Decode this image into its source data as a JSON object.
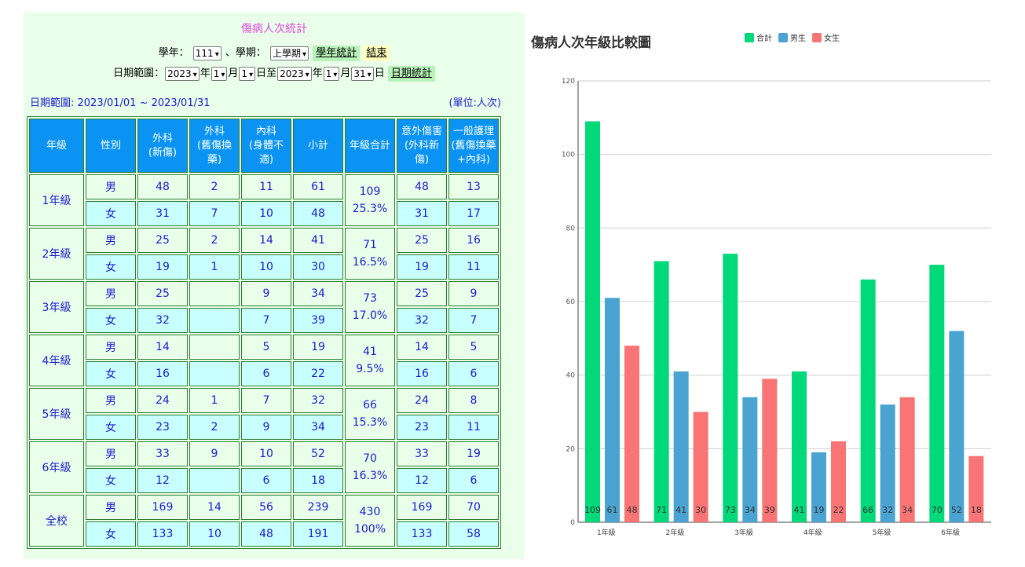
{
  "left": {
    "title": "傷病人次統計",
    "row1": {
      "year_label": "學年：",
      "year_value": "111",
      "term_label": "、學期：",
      "term_value": "上學期",
      "stat_button": "學年統計",
      "end_button": "結束"
    },
    "row2": {
      "range_label": "日期範圍：",
      "y1": "2023",
      "y_unit1": "年",
      "m1": "1",
      "m_unit1": "月",
      "d1": "1",
      "d_unit1": "日至",
      "y2": "2023",
      "y_unit2": "年",
      "m2": "1",
      "m_unit2": "月",
      "d2": "31",
      "d_unit2": "日",
      "day_button": "日期統計"
    },
    "range_text": "日期範圍: 2023/01/01 ~ 2023/01/31",
    "unit_text": "(單位:人次)",
    "headers": [
      "年級",
      "性別",
      "外科\n(新傷)",
      "外科\n(舊傷換藥)",
      "內科\n(身體不適)",
      "小計",
      "年級合計",
      "意外傷害\n(外科新傷)",
      "一般護理\n(舊傷換藥\n+內科)"
    ],
    "groups": [
      {
        "grade": "1年級",
        "total": "109",
        "pct": "25.3%",
        "rows": [
          {
            "sex": "男",
            "a": "48",
            "b": "2",
            "c": "11",
            "sub": "61",
            "acc": "48",
            "care": "13"
          },
          {
            "sex": "女",
            "a": "31",
            "b": "7",
            "c": "10",
            "sub": "48",
            "acc": "31",
            "care": "17"
          }
        ]
      },
      {
        "grade": "2年級",
        "total": "71",
        "pct": "16.5%",
        "rows": [
          {
            "sex": "男",
            "a": "25",
            "b": "2",
            "c": "14",
            "sub": "41",
            "acc": "25",
            "care": "16"
          },
          {
            "sex": "女",
            "a": "19",
            "b": "1",
            "c": "10",
            "sub": "30",
            "acc": "19",
            "care": "11"
          }
        ]
      },
      {
        "grade": "3年級",
        "total": "73",
        "pct": "17.0%",
        "rows": [
          {
            "sex": "男",
            "a": "25",
            "b": "",
            "c": "9",
            "sub": "34",
            "acc": "25",
            "care": "9"
          },
          {
            "sex": "女",
            "a": "32",
            "b": "",
            "c": "7",
            "sub": "39",
            "acc": "32",
            "care": "7"
          }
        ]
      },
      {
        "grade": "4年級",
        "total": "41",
        "pct": "9.5%",
        "rows": [
          {
            "sex": "男",
            "a": "14",
            "b": "",
            "c": "5",
            "sub": "19",
            "acc": "14",
            "care": "5"
          },
          {
            "sex": "女",
            "a": "16",
            "b": "",
            "c": "6",
            "sub": "22",
            "acc": "16",
            "care": "6"
          }
        ]
      },
      {
        "grade": "5年級",
        "total": "66",
        "pct": "15.3%",
        "rows": [
          {
            "sex": "男",
            "a": "24",
            "b": "1",
            "c": "7",
            "sub": "32",
            "acc": "24",
            "care": "8"
          },
          {
            "sex": "女",
            "a": "23",
            "b": "2",
            "c": "9",
            "sub": "34",
            "acc": "23",
            "care": "11"
          }
        ]
      },
      {
        "grade": "6年級",
        "total": "70",
        "pct": "16.3%",
        "rows": [
          {
            "sex": "男",
            "a": "33",
            "b": "9",
            "c": "10",
            "sub": "52",
            "acc": "33",
            "care": "19"
          },
          {
            "sex": "女",
            "a": "12",
            "b": "",
            "c": "6",
            "sub": "18",
            "acc": "12",
            "care": "6"
          }
        ]
      },
      {
        "grade": "全校",
        "total": "430",
        "pct": "100%",
        "rows": [
          {
            "sex": "男",
            "a": "169",
            "b": "14",
            "c": "56",
            "sub": "239",
            "acc": "169",
            "care": "70"
          },
          {
            "sex": "女",
            "a": "133",
            "b": "10",
            "c": "48",
            "sub": "191",
            "acc": "133",
            "care": "58"
          }
        ]
      }
    ]
  },
  "chart_data": {
    "type": "bar",
    "title": "傷病人次年級比較圖",
    "categories": [
      "1年級",
      "2年級",
      "3年級",
      "4年級",
      "5年級",
      "6年級"
    ],
    "series": [
      {
        "name": "合計",
        "color": "#00d97a",
        "values": [
          109,
          71,
          73,
          41,
          66,
          70
        ]
      },
      {
        "name": "男生",
        "color": "#4aa3d0",
        "values": [
          61,
          41,
          34,
          19,
          32,
          52
        ]
      },
      {
        "name": "女生",
        "color": "#f97474",
        "values": [
          48,
          30,
          39,
          22,
          34,
          18
        ]
      }
    ],
    "ylim": [
      0,
      120
    ],
    "yticks": [
      0,
      20,
      40,
      60,
      80,
      100,
      120
    ],
    "grid": true,
    "legend_position": "top"
  }
}
